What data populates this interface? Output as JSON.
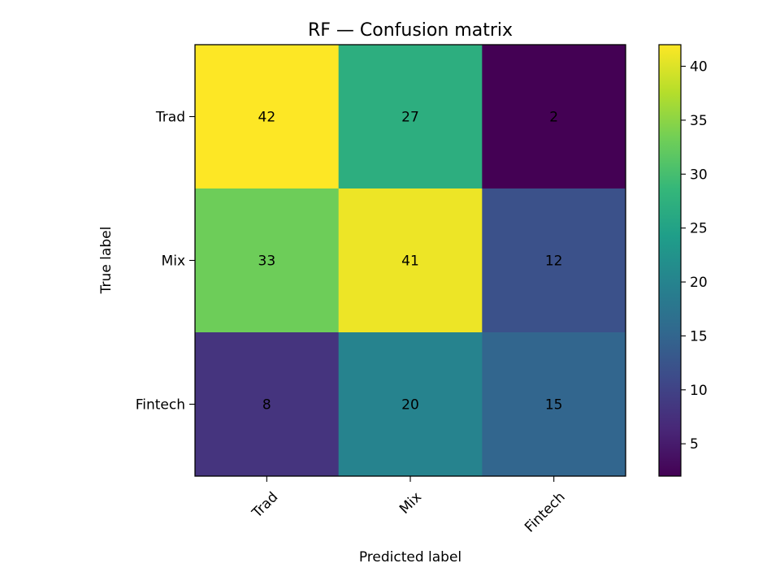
{
  "chart_data": {
    "type": "heatmap",
    "title": "RF — Confusion matrix",
    "xlabel": "Predicted label",
    "ylabel": "True label",
    "x_categories": [
      "Trad",
      "Mix",
      "Fintech"
    ],
    "y_categories": [
      "Trad",
      "Mix",
      "Fintech"
    ],
    "matrix": [
      [
        42,
        27,
        2
      ],
      [
        33,
        41,
        12
      ],
      [
        8,
        20,
        15
      ]
    ],
    "colorbar": {
      "min": 2,
      "max": 42,
      "ticks": [
        5,
        10,
        15,
        20,
        25,
        30,
        35,
        40
      ]
    },
    "colormap": "viridis",
    "grid": false
  }
}
